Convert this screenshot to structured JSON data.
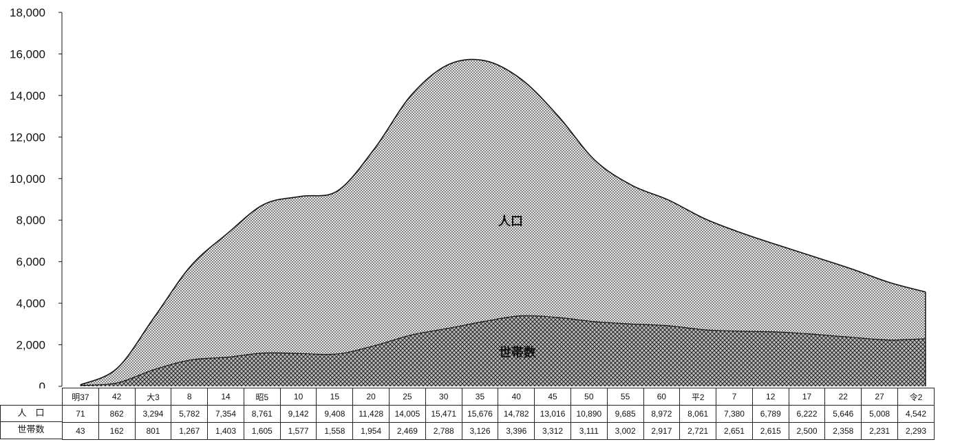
{
  "chart_data": {
    "type": "area",
    "categories": [
      "明37",
      "42",
      "大3",
      "8",
      "14",
      "昭5",
      "10",
      "15",
      "20",
      "25",
      "30",
      "35",
      "40",
      "45",
      "50",
      "55",
      "60",
      "平2",
      "7",
      "12",
      "17",
      "22",
      "27",
      "令2"
    ],
    "series": [
      {
        "name": "人口",
        "label": "人　口",
        "values": [
          71,
          862,
          3294,
          5782,
          7354,
          8761,
          9142,
          9408,
          11428,
          14005,
          15471,
          15676,
          14782,
          13016,
          10890,
          9685,
          8972,
          8061,
          7380,
          6789,
          6222,
          5646,
          5008,
          4542
        ],
        "display": [
          "71",
          "862",
          "3,294",
          "5,782",
          "7,354",
          "8,761",
          "9,142",
          "9,408",
          "11,428",
          "14,005",
          "15,471",
          "15,676",
          "14,782",
          "13,016",
          "10,890",
          "9,685",
          "8,972",
          "8,061",
          "7,380",
          "6,789",
          "6,222",
          "5,646",
          "5,008",
          "4,542"
        ]
      },
      {
        "name": "世帯数",
        "label": "世帯数",
        "values": [
          43,
          162,
          801,
          1267,
          1403,
          1605,
          1577,
          1558,
          1954,
          2469,
          2788,
          3126,
          3396,
          3312,
          3111,
          3002,
          2917,
          2721,
          2651,
          2615,
          2500,
          2358,
          2231,
          2293
        ],
        "display": [
          "43",
          "162",
          "801",
          "1,267",
          "1,403",
          "1,605",
          "1,577",
          "1,558",
          "1,954",
          "2,469",
          "2,788",
          "3,126",
          "3,396",
          "3,312",
          "3,111",
          "3,002",
          "2,917",
          "2,721",
          "2,651",
          "2,615",
          "2,500",
          "2,358",
          "2,231",
          "2,293"
        ]
      }
    ],
    "ylim": [
      0,
      18000
    ],
    "yticks": [
      "0",
      "2,000",
      "4,000",
      "6,000",
      "8,000",
      "10,000",
      "12,000",
      "14,000",
      "16,000",
      "18,000"
    ],
    "area_labels": {
      "population": "人口",
      "households": "世帯数"
    },
    "grid": false,
    "colors": {
      "population_fill": "#c9c9c9",
      "household_fill": "#8a8a8a",
      "line": "#111111"
    }
  }
}
